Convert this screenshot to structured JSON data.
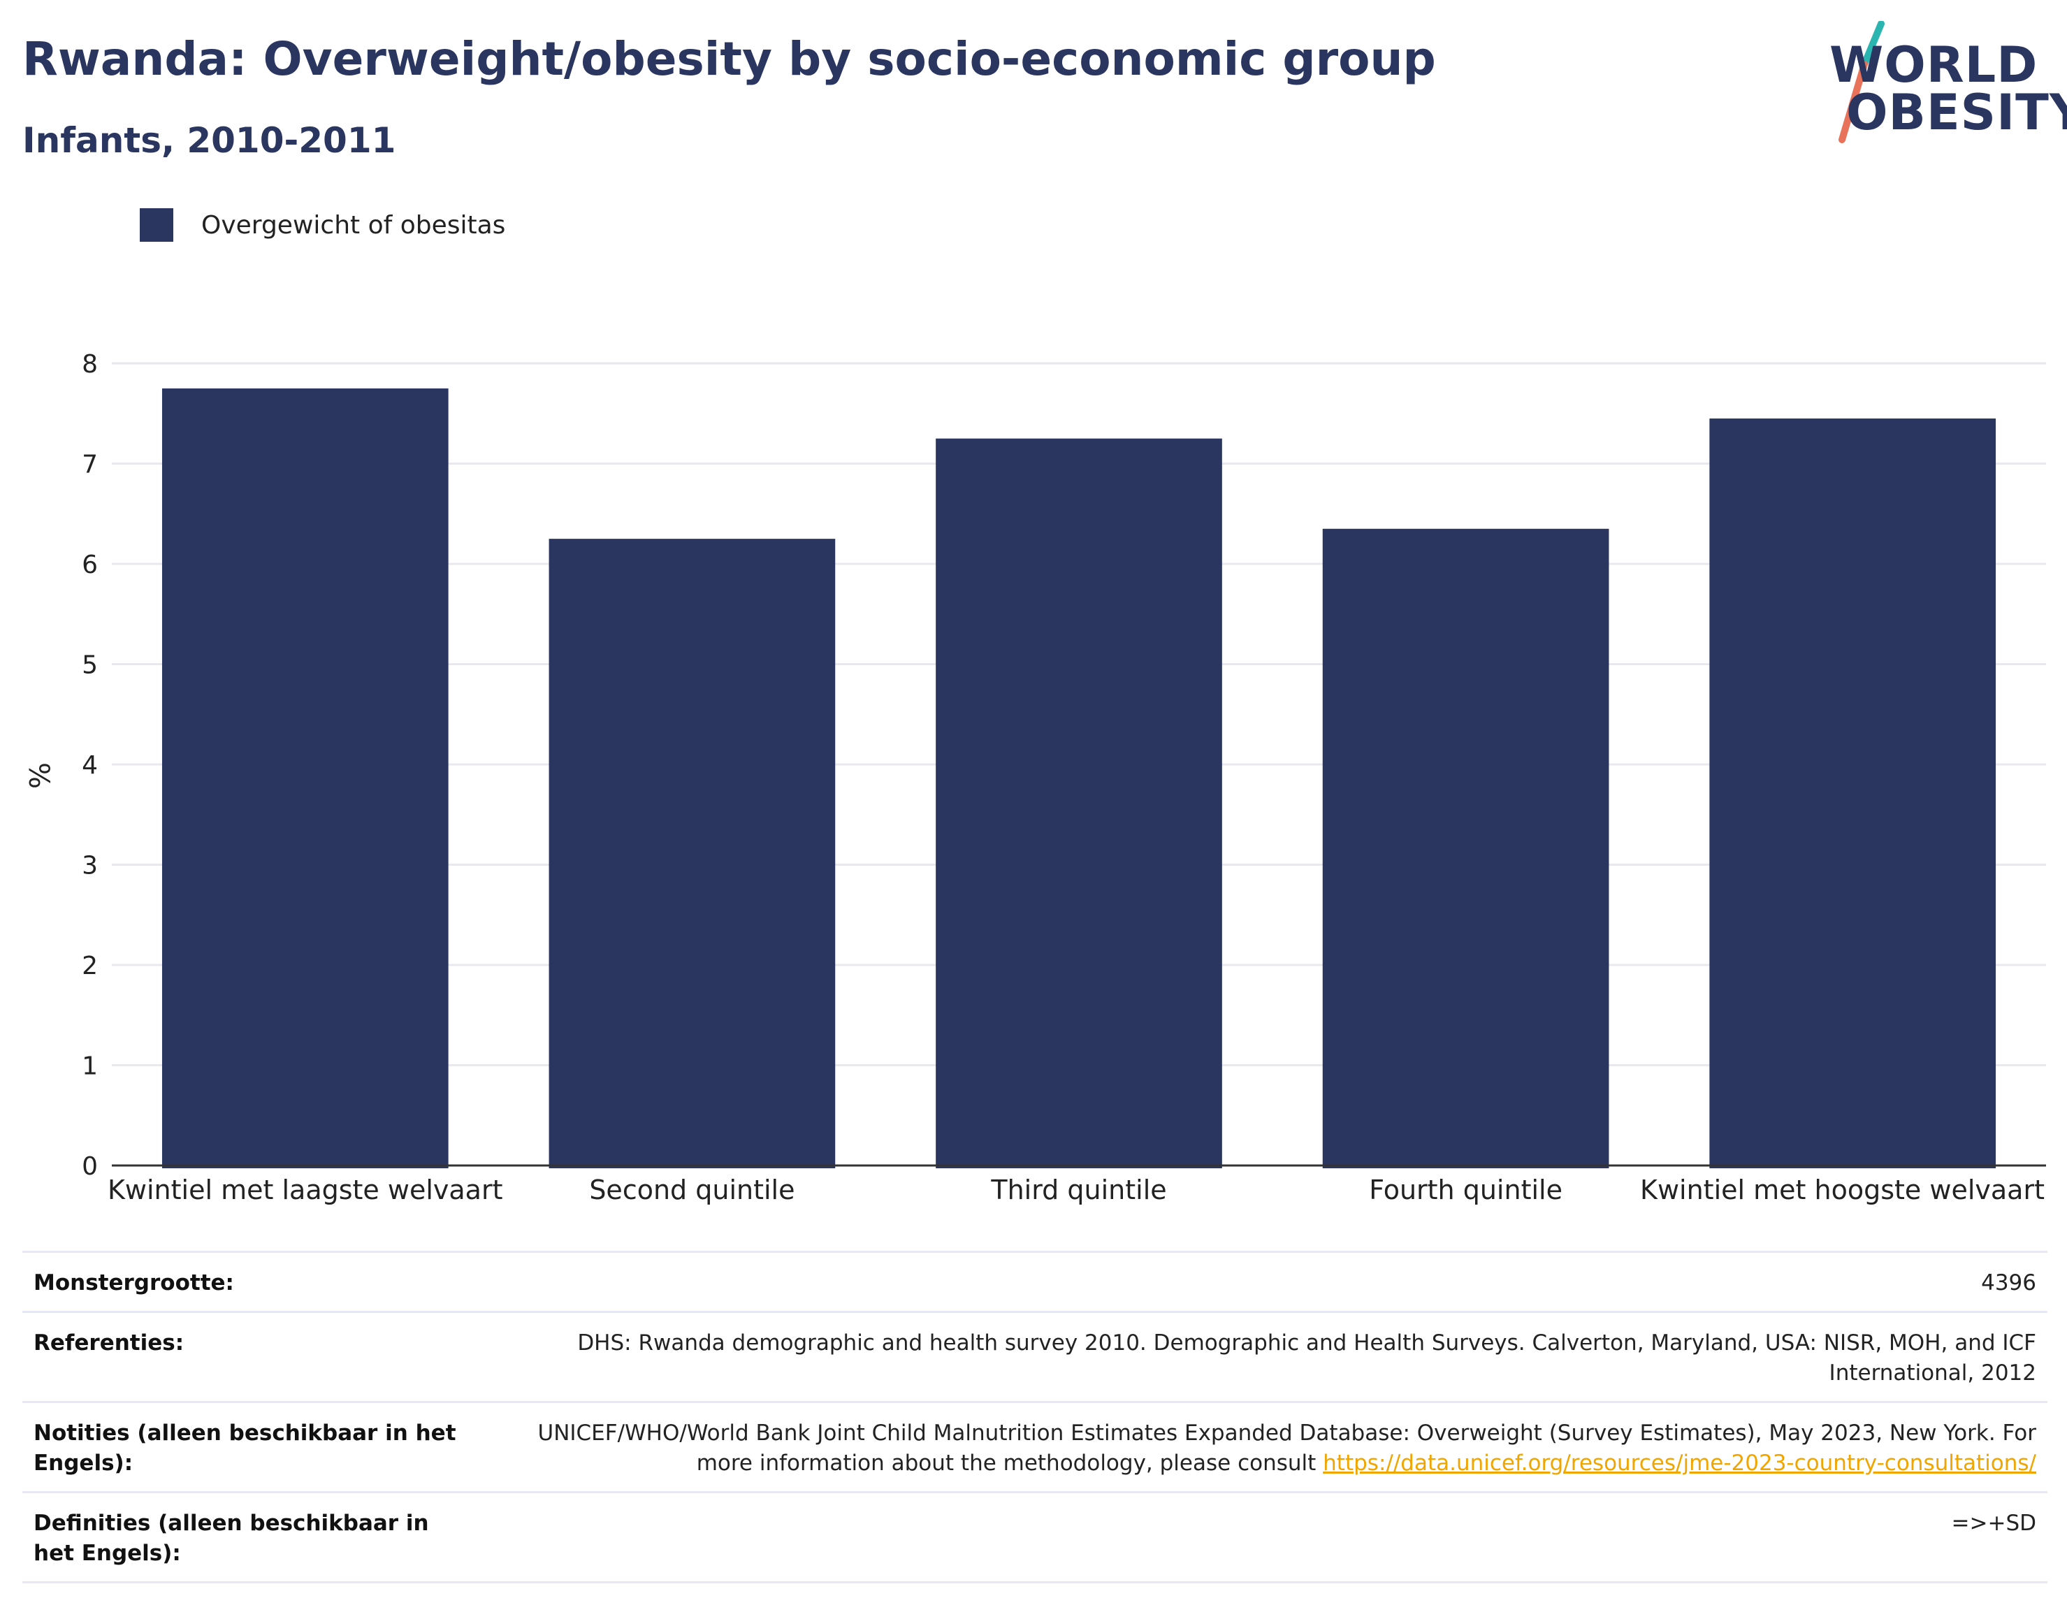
{
  "header": {
    "title": "Rwanda: Overweight/obesity by socio-economic group",
    "subtitle": "Infants, 2010-2011"
  },
  "logo": {
    "line1": "WORLD",
    "line2": "OBESITY",
    "icon": "slash-logo-icon",
    "colors": {
      "text": "#2a3560",
      "slash_top": "#2bb5b0",
      "slash_bottom": "#e8735a"
    }
  },
  "legend": {
    "label": "Overgewicht of obesitas",
    "color": "#2a3560"
  },
  "chart_data": {
    "type": "bar",
    "title": "Rwanda: Overweight/obesity by socio-economic group",
    "subtitle": "Infants, 2010-2011",
    "categories": [
      "Kwintiel met laagste welvaart",
      "Second quintile",
      "Third quintile",
      "Fourth quintile",
      "Kwintiel met hoogste welvaart"
    ],
    "series": [
      {
        "name": "Overgewicht of obesitas",
        "values": [
          7.75,
          6.25,
          7.25,
          6.35,
          7.45
        ],
        "color": "#2a3560"
      }
    ],
    "xlabel": "",
    "ylabel": "%",
    "ylim": [
      0,
      8
    ],
    "yticks": [
      0,
      1,
      2,
      3,
      4,
      5,
      6,
      7,
      8
    ],
    "grid": true,
    "legend_position": "top-left"
  },
  "meta": {
    "sample_size": {
      "label": "Monstergrootte:",
      "value": "4396"
    },
    "references": {
      "label": "Referenties:",
      "value": "DHS: Rwanda demographic and health survey 2010. Demographic and Health Surveys. Calverton, Maryland, USA: NISR, MOH, and ICF International, 2012"
    },
    "notes": {
      "label": "Notities (alleen beschikbaar in het Engels):",
      "value": "UNICEF/WHO/World Bank Joint Child Malnutrition Estimates Expanded Database: Overweight (Survey Estimates), May 2023, New York. For more information about the methodology, please consult ",
      "link": "https://data.unicef.org/resources/jme-2023-country-consultations/"
    },
    "definitions": {
      "label": "Definities (alleen beschikbaar in het Engels):",
      "value": "=>+SD"
    }
  }
}
